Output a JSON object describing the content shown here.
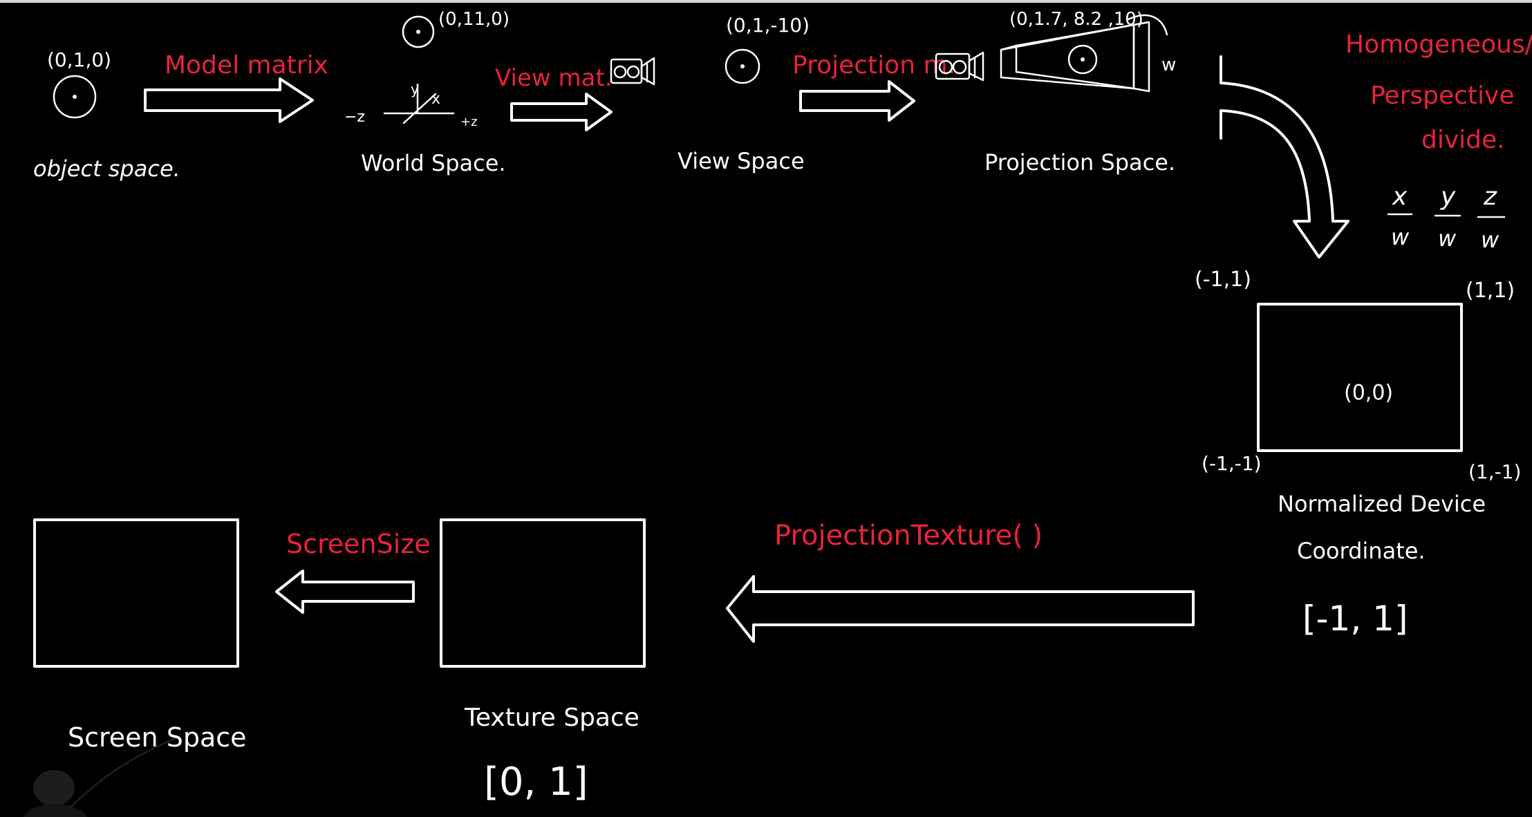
{
  "top_row": {
    "object_space": {
      "coord": "(0,1,0)",
      "label": "object space."
    },
    "model_arrow": {
      "label": "Model matrix"
    },
    "world_space": {
      "coord": "(0,11,0)",
      "label": "World Space.",
      "axis_y": "y",
      "axis_x": "x",
      "axis_neg_z": "−z",
      "axis_pos_z": "+z"
    },
    "view_arrow": {
      "label": "View mat."
    },
    "view_space": {
      "coord": "(0,1,-10)",
      "label": "View Space"
    },
    "projection_arrow": {
      "label": "Projection m."
    },
    "projection_space": {
      "coord": "(0,1.7, 8.2 ,10)",
      "w_label": "w",
      "label": "Projection Space."
    }
  },
  "divide": {
    "title_line1": "Homogeneous/",
    "title_line2": "Perspective",
    "title_line3": "divide.",
    "fractions": [
      {
        "num": "x",
        "den": "w"
      },
      {
        "num": "y",
        "den": "w"
      },
      {
        "num": "z",
        "den": "w"
      }
    ]
  },
  "ndc": {
    "corner_tl": "(-1,1)",
    "corner_tr": "(1,1)",
    "corner_bl": "(-1,-1)",
    "corner_br": "(1,-1)",
    "center": "(0,0)",
    "label_line1": "Normalized Device",
    "label_line2": "Coordinate.",
    "range": "[-1, 1]"
  },
  "bottom_row": {
    "projection_texture_arrow": {
      "label": "ProjectionTexture(  )"
    },
    "texture_space": {
      "label": "Texture Space",
      "range": "[0, 1]"
    },
    "screen_size_arrow": {
      "label": "ScreenSize"
    },
    "screen_space": {
      "label": "Screen Space"
    }
  },
  "colors": {
    "background": "#000000",
    "ink": "#ffffff",
    "accent": "#e8233a"
  }
}
